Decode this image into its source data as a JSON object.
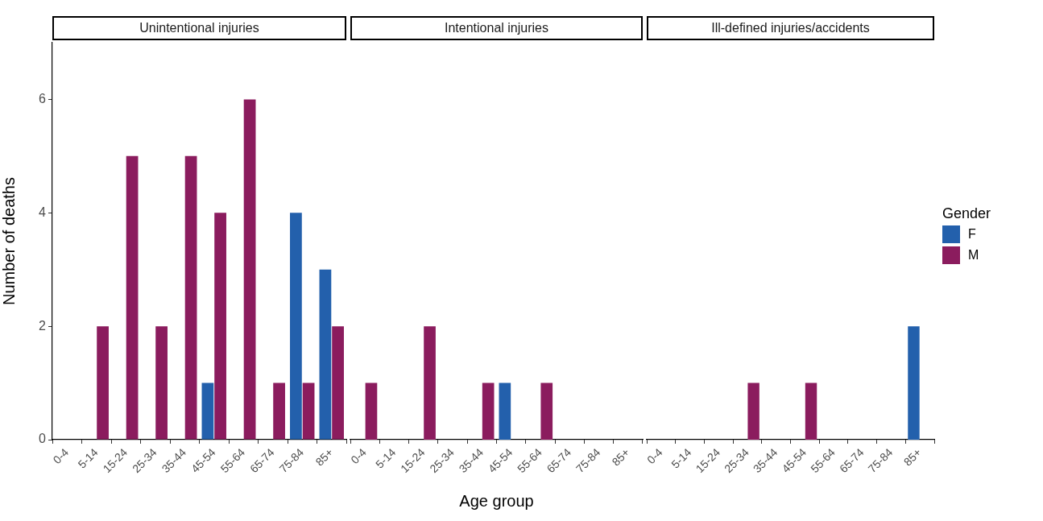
{
  "chart_data": [
    {
      "type": "bar",
      "title": "Unintentional injuries",
      "ylabel": "Number of deaths",
      "categories": [
        "0-4",
        "5-14",
        "15-24",
        "25-34",
        "35-44",
        "45-54",
        "55-64",
        "65-74",
        "75-84",
        "85+"
      ],
      "series": [
        {
          "color": "#2360ac",
          "values": [
            null,
            null,
            null,
            null,
            null,
            1,
            null,
            null,
            4,
            3
          ]
        },
        {
          "color": "#8b1c5e",
          "values": [
            null,
            2,
            5,
            2,
            5,
            4,
            6,
            1,
            1,
            2
          ]
        }
      ],
      "ylim": [
        0,
        7
      ],
      "yticks": [
        0,
        2,
        4,
        6
      ],
      "grid": false
    },
    {
      "type": "bar",
      "title": "Intentional injuries",
      "xlabel": "Age group",
      "categories": [
        "0-4",
        "5-14",
        "15-24",
        "25-34",
        "35-44",
        "45-54",
        "55-64",
        "65-74",
        "75-84",
        "85+"
      ],
      "series": [
        {
          "color": "#2360ac",
          "values": [
            null,
            null,
            null,
            null,
            null,
            1,
            null,
            null,
            null,
            null
          ]
        },
        {
          "color": "#8b1c5e",
          "values": [
            1,
            null,
            2,
            null,
            1,
            null,
            1,
            null,
            null,
            null
          ]
        }
      ],
      "yticks": [
        0,
        2,
        4,
        6
      ],
      "grid": false,
      "tick_labels": "x"
    },
    {
      "type": "bar",
      "title": "Ill-defined injuries/accidents",
      "legend_title": "Gender",
      "legend": "right",
      "categories": [
        "0-4",
        "5-14",
        "15-24",
        "25-34",
        "35-44",
        "45-54",
        "55-64",
        "65-74",
        "75-84",
        "85+"
      ],
      "series": [
        {
          "name": "F",
          "color": "#2360ac",
          "values": [
            null,
            null,
            null,
            null,
            null,
            null,
            null,
            null,
            null,
            2
          ]
        },
        {
          "name": "M",
          "color": "#8b1c5e",
          "values": [
            null,
            null,
            null,
            1,
            null,
            1,
            null,
            null,
            null,
            null
          ]
        }
      ],
      "yticks": [
        0,
        2,
        4,
        6
      ],
      "grid": false,
      "tick_labels": "x"
    }
  ]
}
